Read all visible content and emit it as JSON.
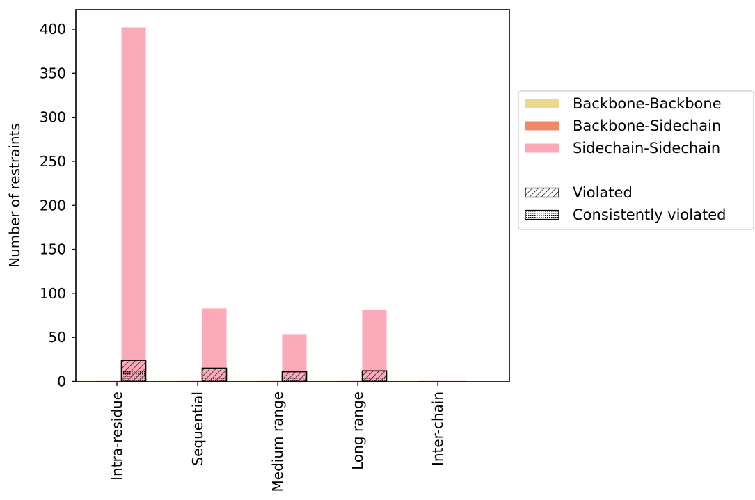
{
  "chart_data": {
    "type": "bar",
    "title": "",
    "xlabel": "",
    "ylabel": "Number of restraints",
    "ylim": [
      0,
      420
    ],
    "yticks": [
      0,
      50,
      100,
      150,
      200,
      250,
      300,
      350,
      400
    ],
    "categories": [
      "Intra-residue",
      "Sequential",
      "Medium range",
      "Long range",
      "Inter-chain"
    ],
    "series": [
      {
        "name": "Backbone-Backbone",
        "color": "#ecd98d",
        "values": [
          0,
          0,
          0,
          0,
          0
        ]
      },
      {
        "name": "Backbone-Sidechain",
        "color": "#f0896a",
        "values": [
          0,
          0,
          0,
          0,
          0
        ]
      },
      {
        "name": "Sidechain-Sidechain",
        "color": "#fdaab8",
        "values": [
          402,
          83,
          53,
          81,
          0
        ]
      }
    ],
    "violated": {
      "name": "Violated",
      "values": [
        24,
        15,
        11,
        12,
        0
      ]
    },
    "consistently_violated": {
      "name": "Consistently violated",
      "values": [
        12,
        5,
        5,
        5,
        0
      ]
    },
    "legend_position": "right",
    "grid": false
  }
}
